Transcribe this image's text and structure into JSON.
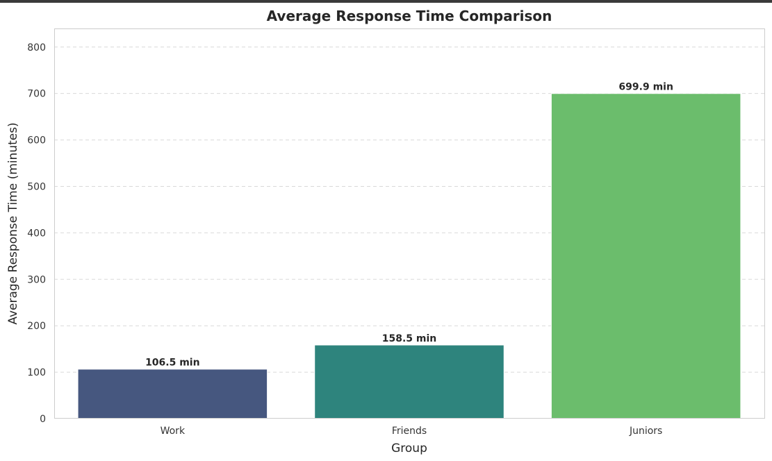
{
  "chart_data": {
    "type": "bar",
    "title": "Average Response Time Comparison",
    "xlabel": "Group",
    "ylabel": "Average Response Time (minutes)",
    "categories": [
      "Work",
      "Friends",
      "Juniors"
    ],
    "values": [
      106.5,
      158.5,
      699.9
    ],
    "value_labels": [
      "106.5 min",
      "158.5 min",
      "699.9 min"
    ],
    "colors": [
      "#46577f",
      "#2e847d",
      "#6bbd6c"
    ],
    "ylim": [
      0,
      840
    ],
    "yticks": [
      0,
      100,
      200,
      300,
      400,
      500,
      600,
      700,
      800
    ],
    "grid": true,
    "grid_axis": "y"
  }
}
